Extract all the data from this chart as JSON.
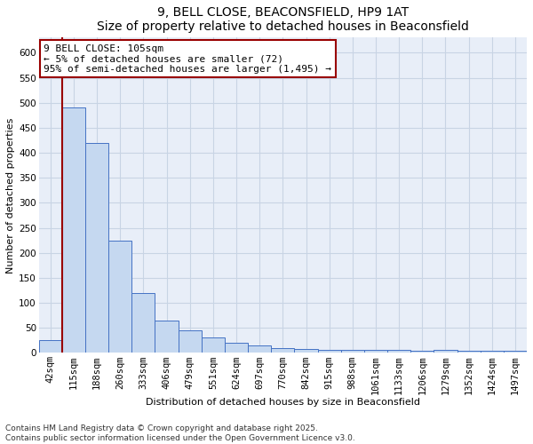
{
  "title_line1": "9, BELL CLOSE, BEACONSFIELD, HP9 1AT",
  "title_line2": "Size of property relative to detached houses in Beaconsfield",
  "xlabel": "Distribution of detached houses by size in Beaconsfield",
  "ylabel": "Number of detached properties",
  "footnote1": "Contains HM Land Registry data © Crown copyright and database right 2025.",
  "footnote2": "Contains public sector information licensed under the Open Government Licence v3.0.",
  "annotation_line1": "9 BELL CLOSE: 105sqm",
  "annotation_line2": "← 5% of detached houses are smaller (72)",
  "annotation_line3": "95% of semi-detached houses are larger (1,495) →",
  "bar_labels": [
    "42sqm",
    "115sqm",
    "188sqm",
    "260sqm",
    "333sqm",
    "406sqm",
    "479sqm",
    "551sqm",
    "624sqm",
    "697sqm",
    "770sqm",
    "842sqm",
    "915sqm",
    "988sqm",
    "1061sqm",
    "1133sqm",
    "1206sqm",
    "1279sqm",
    "1352sqm",
    "1424sqm",
    "1497sqm"
  ],
  "bar_values": [
    25,
    490,
    420,
    225,
    120,
    65,
    45,
    30,
    20,
    15,
    10,
    8,
    6,
    6,
    6,
    6,
    5,
    6,
    5,
    5,
    5
  ],
  "bar_color": "#c5d8f0",
  "bar_edge_color": "#4472c4",
  "marker_color": "#990000",
  "ylim": [
    0,
    630
  ],
  "yticks": [
    0,
    50,
    100,
    150,
    200,
    250,
    300,
    350,
    400,
    450,
    500,
    550,
    600
  ],
  "grid_color": "#c8d4e4",
  "bg_color": "#e8eef8",
  "title_fontsize": 10,
  "axis_label_fontsize": 8,
  "tick_fontsize": 7.5,
  "annotation_fontsize": 8,
  "footnote_fontsize": 6.5
}
